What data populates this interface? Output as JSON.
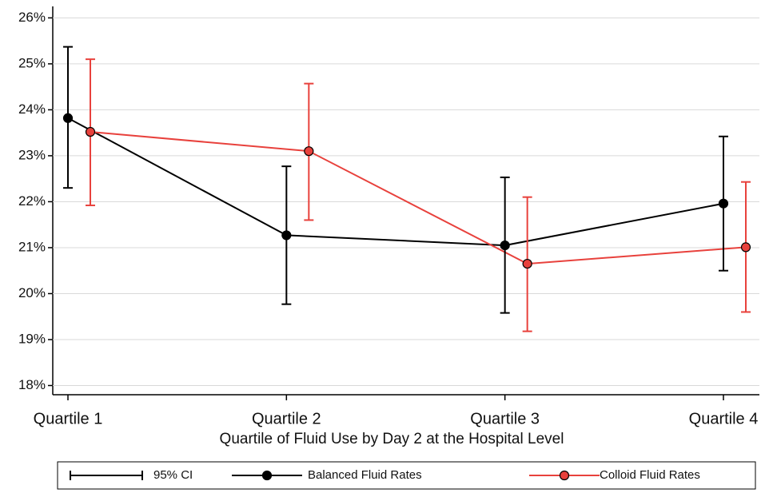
{
  "chart_data": {
    "type": "line",
    "x_label": "Quartile of Fluid Use by Day 2 at the Hospital Level",
    "categories": [
      "Quartile 1",
      "Quartile 2",
      "Quartile 3",
      "Quartile 4"
    ],
    "series": [
      {
        "name": "Balanced Fluid Rates",
        "color": "#000000",
        "marker_fill": "#000000",
        "values": [
          23.82,
          21.27,
          21.05,
          21.96
        ],
        "ci_low": [
          22.3,
          19.77,
          19.58,
          20.5
        ],
        "ci_high": [
          25.37,
          22.77,
          22.53,
          23.42
        ]
      },
      {
        "name": "Colloid Fluid Rates",
        "color": "#e8413c",
        "marker_fill": "#e8413c",
        "values": [
          23.52,
          23.1,
          20.65,
          21.01
        ],
        "ci_low": [
          21.92,
          21.6,
          19.18,
          19.6
        ],
        "ci_high": [
          25.1,
          24.57,
          22.1,
          22.43
        ]
      }
    ],
    "ci_label": "95% CI",
    "ylim": [
      17.8,
      26.25
    ],
    "yticks": [
      {
        "value": 18,
        "label": "18%"
      },
      {
        "value": 19,
        "label": "19%"
      },
      {
        "value": 20,
        "label": "20%"
      },
      {
        "value": 21,
        "label": "21%"
      },
      {
        "value": 22,
        "label": "22%"
      },
      {
        "value": 23,
        "label": "23%"
      },
      {
        "value": 24,
        "label": "24%"
      },
      {
        "value": 25,
        "label": "25%"
      },
      {
        "value": 26,
        "label": "26%"
      }
    ],
    "grid": true,
    "legend": "bottom"
  }
}
